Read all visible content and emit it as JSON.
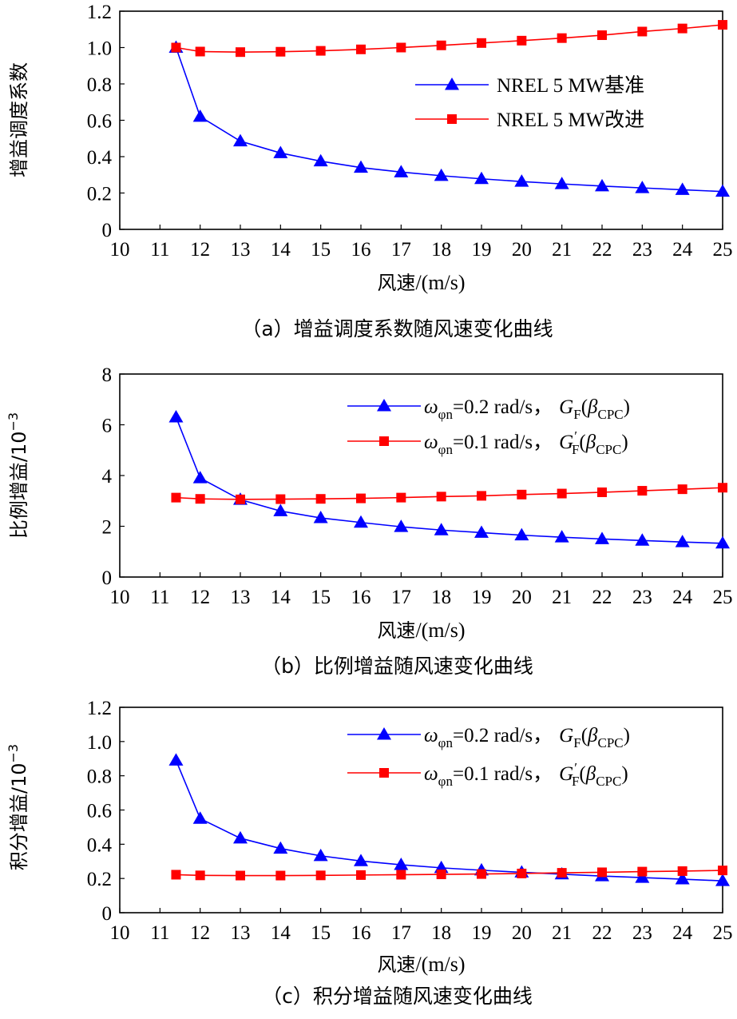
{
  "chart_data": [
    {
      "id": "a",
      "type": "line",
      "caption": "（a）增益调度系数随风速变化曲线",
      "xlabel_cjk": "风速",
      "xlabel_unit": "/(m/s)",
      "ylabel": "增益调度系数",
      "ylabel_exp": "",
      "xlim": [
        10,
        25
      ],
      "ylim": [
        0,
        1.2
      ],
      "xticks": [
        "10",
        "11",
        "12",
        "13",
        "14",
        "15",
        "16",
        "17",
        "18",
        "19",
        "20",
        "21",
        "22",
        "23",
        "24",
        "25"
      ],
      "yticks": [
        "0",
        "0.2",
        "0.4",
        "0.6",
        "0.8",
        "1.0",
        "1.2"
      ],
      "legend_position": "middle-right",
      "series": [
        {
          "name": "NREL 5 MW基准",
          "legend_parts": [
            "NREL 5 MW基准"
          ],
          "marker": "triangle",
          "color": "#0000ff",
          "x": [
            11.4,
            12,
            13,
            14,
            15,
            16,
            17,
            18,
            19,
            20,
            21,
            22,
            23,
            24,
            25
          ],
          "values": [
            1.0,
            0.62,
            0.485,
            0.42,
            0.375,
            0.34,
            0.315,
            0.295,
            0.278,
            0.263,
            0.25,
            0.238,
            0.228,
            0.218,
            0.208
          ]
        },
        {
          "name": "NREL 5 MW改进",
          "legend_parts": [
            "NREL 5 MW改进"
          ],
          "marker": "square",
          "color": "#ff0000",
          "x": [
            11.4,
            12,
            13,
            14,
            15,
            16,
            17,
            18,
            19,
            20,
            21,
            22,
            23,
            24,
            25
          ],
          "values": [
            1.0,
            0.978,
            0.975,
            0.977,
            0.982,
            0.99,
            1.0,
            1.012,
            1.025,
            1.038,
            1.052,
            1.068,
            1.088,
            1.105,
            1.125
          ]
        }
      ]
    },
    {
      "id": "b",
      "type": "line",
      "caption": "（b）比例增益随风速变化曲线",
      "xlabel_cjk": "风速",
      "xlabel_unit": "/(m/s)",
      "ylabel": "比例增益/10",
      "ylabel_exp": "−3",
      "xlim": [
        10,
        25
      ],
      "ylim": [
        0,
        8
      ],
      "xticks": [
        "10",
        "11",
        "12",
        "13",
        "14",
        "15",
        "16",
        "17",
        "18",
        "19",
        "20",
        "21",
        "22",
        "23",
        "24",
        "25"
      ],
      "yticks": [
        "0",
        "2",
        "4",
        "6",
        "8"
      ],
      "legend_position": "top-right",
      "series": [
        {
          "name": "ωφn=0.2 rad/s，GF(βCPC)",
          "legend_parts": [
            "ω",
            "φn",
            "=0.2 rad/s，",
            "G",
            "F",
            "(",
            "β",
            "CPC",
            ")"
          ],
          "marker": "triangle",
          "color": "#0000ff",
          "x": [
            11.4,
            12,
            13,
            14,
            15,
            16,
            17,
            18,
            19,
            20,
            21,
            22,
            23,
            24,
            25
          ],
          "values": [
            6.3,
            3.9,
            3.05,
            2.6,
            2.33,
            2.15,
            1.98,
            1.85,
            1.75,
            1.65,
            1.57,
            1.5,
            1.44,
            1.38,
            1.33
          ]
        },
        {
          "name": "ωφn=0.1 rad/s，G'F(βCPC)",
          "legend_parts": [
            "ω",
            "φn",
            "=0.1 rad/s，",
            "G",
            "F",
            "(",
            "β",
            "CPC",
            ")"
          ],
          "marker": "square",
          "color": "#ff0000",
          "x": [
            11.4,
            12,
            13,
            14,
            15,
            16,
            17,
            18,
            19,
            20,
            21,
            22,
            23,
            24,
            25
          ],
          "values": [
            3.13,
            3.08,
            3.06,
            3.07,
            3.08,
            3.1,
            3.13,
            3.17,
            3.2,
            3.25,
            3.29,
            3.34,
            3.4,
            3.46,
            3.52
          ]
        }
      ]
    },
    {
      "id": "c",
      "type": "line",
      "caption": "（c）积分增益随风速变化曲线",
      "xlabel_cjk": "风速",
      "xlabel_unit": "/(m/s)",
      "ylabel": "积分增益/10",
      "ylabel_exp": "−3",
      "xlim": [
        10,
        25
      ],
      "ylim": [
        0,
        1.2
      ],
      "xticks": [
        "10",
        "11",
        "12",
        "13",
        "14",
        "15",
        "16",
        "17",
        "18",
        "19",
        "20",
        "21",
        "22",
        "23",
        "24",
        "25"
      ],
      "yticks": [
        "0",
        "0.2",
        "0.4",
        "0.6",
        "0.8",
        "1.0",
        "1.2"
      ],
      "legend_position": "top-right",
      "series": [
        {
          "name": "ωφn=0.2 rad/s，GF(βCPC)",
          "legend_parts": [
            "ω",
            "φn",
            "=0.2 rad/s，",
            "G",
            "F",
            "(",
            "β",
            "CPC",
            ")"
          ],
          "marker": "triangle",
          "color": "#0000ff",
          "x": [
            11.4,
            12,
            13,
            14,
            15,
            16,
            17,
            18,
            19,
            20,
            21,
            22,
            23,
            24,
            25
          ],
          "values": [
            0.89,
            0.55,
            0.435,
            0.375,
            0.332,
            0.302,
            0.28,
            0.262,
            0.248,
            0.236,
            0.225,
            0.214,
            0.205,
            0.196,
            0.186
          ]
        },
        {
          "name": "ωφn=0.1 rad/s，G'F(βCPC)",
          "legend_parts": [
            "ω",
            "φn",
            "=0.1 rad/s，",
            "G",
            "F",
            "(",
            "β",
            "CPC",
            ")"
          ],
          "marker": "square",
          "color": "#ff0000",
          "x": [
            11.4,
            12,
            13,
            14,
            15,
            16,
            17,
            18,
            19,
            20,
            21,
            22,
            23,
            24,
            25
          ],
          "values": [
            0.222,
            0.218,
            0.217,
            0.217,
            0.218,
            0.22,
            0.222,
            0.224,
            0.226,
            0.229,
            0.233,
            0.236,
            0.24,
            0.243,
            0.247
          ]
        }
      ]
    }
  ]
}
